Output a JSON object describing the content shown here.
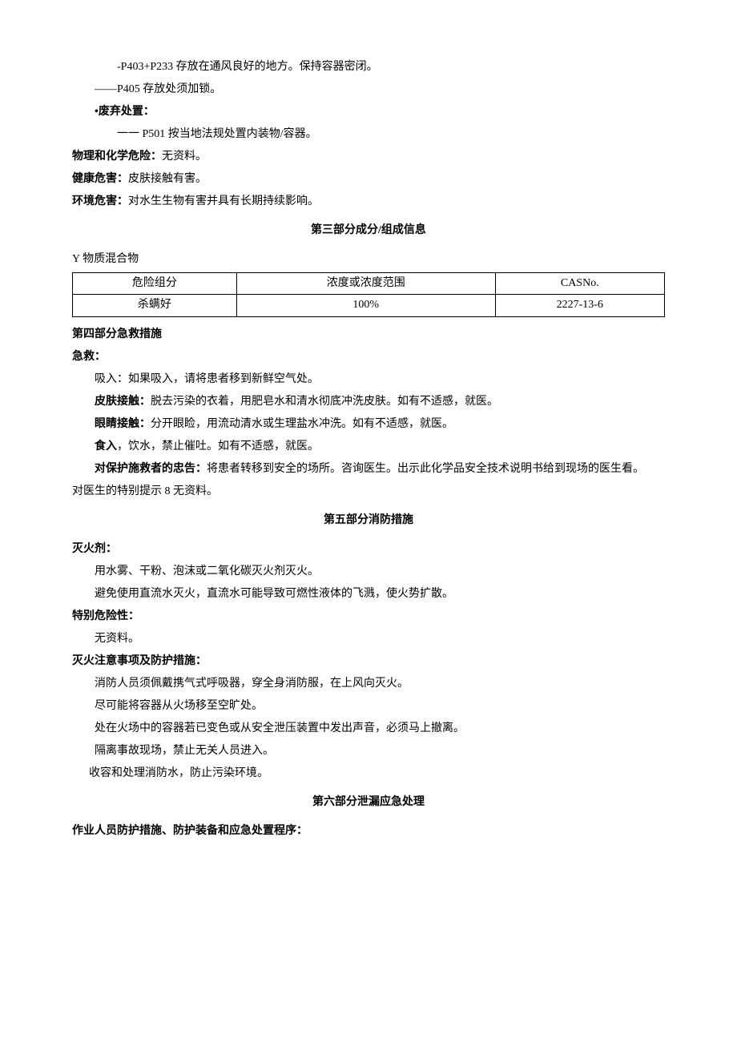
{
  "storage": {
    "p403_p233": "-P403+P233 存放在通风良好的地方。保持容器密闭。",
    "p405": "——P405 存放处须加锁。"
  },
  "disposal": {
    "label": "•废弃处置：",
    "p501": "一一 P501 按当地法规处置内装物/容器。"
  },
  "hazards": {
    "physical_label": "物理和化学危险：",
    "physical_value": "无资料。",
    "health_label": "健康危害：",
    "health_value": "皮肤接触有害。",
    "env_label": "环境危害：",
    "env_value": "对水生生物有害并具有长期持续影响。"
  },
  "section3": {
    "title": "第三部分成分/组成信息",
    "mixture": "Y 物质混合物",
    "table": {
      "headers": [
        "危险组分",
        "浓度或浓度范围",
        "CASNo."
      ],
      "row": [
        "杀螨好",
        "100%",
        "2227-13-6"
      ]
    }
  },
  "section4": {
    "title": "第四部分急救措施",
    "first_aid_label": "急救：",
    "inhalation": "吸入：如果吸入，请将患者移到新鲜空气处。",
    "skin_label": "皮肤接触：",
    "skin_value": "脱去污染的衣着，用肥皂水和清水彻底冲洗皮肤。如有不适感，就医。",
    "eye_label": "眼睛接触：",
    "eye_value": "分开眼睑，用流动清水或生理盐水冲洗。如有不适感，就医。",
    "ingestion_label": "食入",
    "ingestion_value": "，饮水，禁止催吐。如有不适感，就医。",
    "rescuer_label": "对保护施救者的忠告：",
    "rescuer_value": "将患者转移到安全的场所。咨询医生。出示此化学品安全技术说明书给到现场的医生看。",
    "doctor_note": "对医生的特别提示 8 无资料。"
  },
  "section5": {
    "title": "第五部分消防措施",
    "extinguisher_label": "灭火剂：",
    "ext_line1": "用水雾、干粉、泡沫或二氧化碳灭火剂灭火。",
    "ext_line2": "避免使用直流水灭火，直流水可能导致可燃性液体的飞溅，使火势扩散。",
    "special_hazard_label": "特别危险性：",
    "special_hazard_value": "无资料。",
    "precaution_label": "灭火注意事项及防护措施：",
    "prec_line1": "消防人员须佩戴携气式呼吸器，穿全身消防服，在上风向灭火。",
    "prec_line2": "尽可能将容器从火场移至空旷处。",
    "prec_line3": "处在火场中的容器若已变色或从安全泄压装置中发出声音，必须马上撤离。",
    "prec_line4": "隔离事故现场，禁止无关人员进入。",
    "prec_line5": "收容和处理消防水，防止污染环境。"
  },
  "section6": {
    "title": "第六部分泄漏应急处理",
    "personnel_label": "作业人员防护措施、防护装备和应急处置程序："
  }
}
